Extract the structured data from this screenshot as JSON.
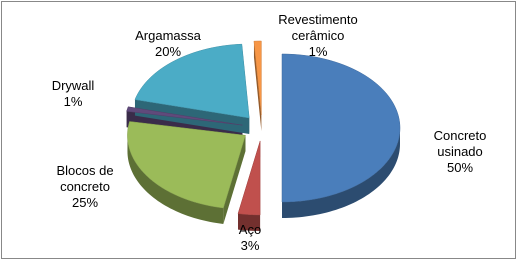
{
  "chart_data": {
    "type": "pie3d",
    "categories": [
      "Concreto usinado",
      "Aço",
      "Blocos de concreto",
      "Drywall",
      "Argamassa",
      "Revestimento cerâmico"
    ],
    "values": [
      50,
      3,
      25,
      1,
      20,
      1
    ],
    "value_labels": [
      "50%",
      "3%",
      "25%",
      "1%",
      "20%",
      "1%"
    ],
    "colors": [
      "#4a7ebb",
      "#c0504d",
      "#9bbb59",
      "#604a7b",
      "#4bacc6",
      "#f79646"
    ]
  }
}
